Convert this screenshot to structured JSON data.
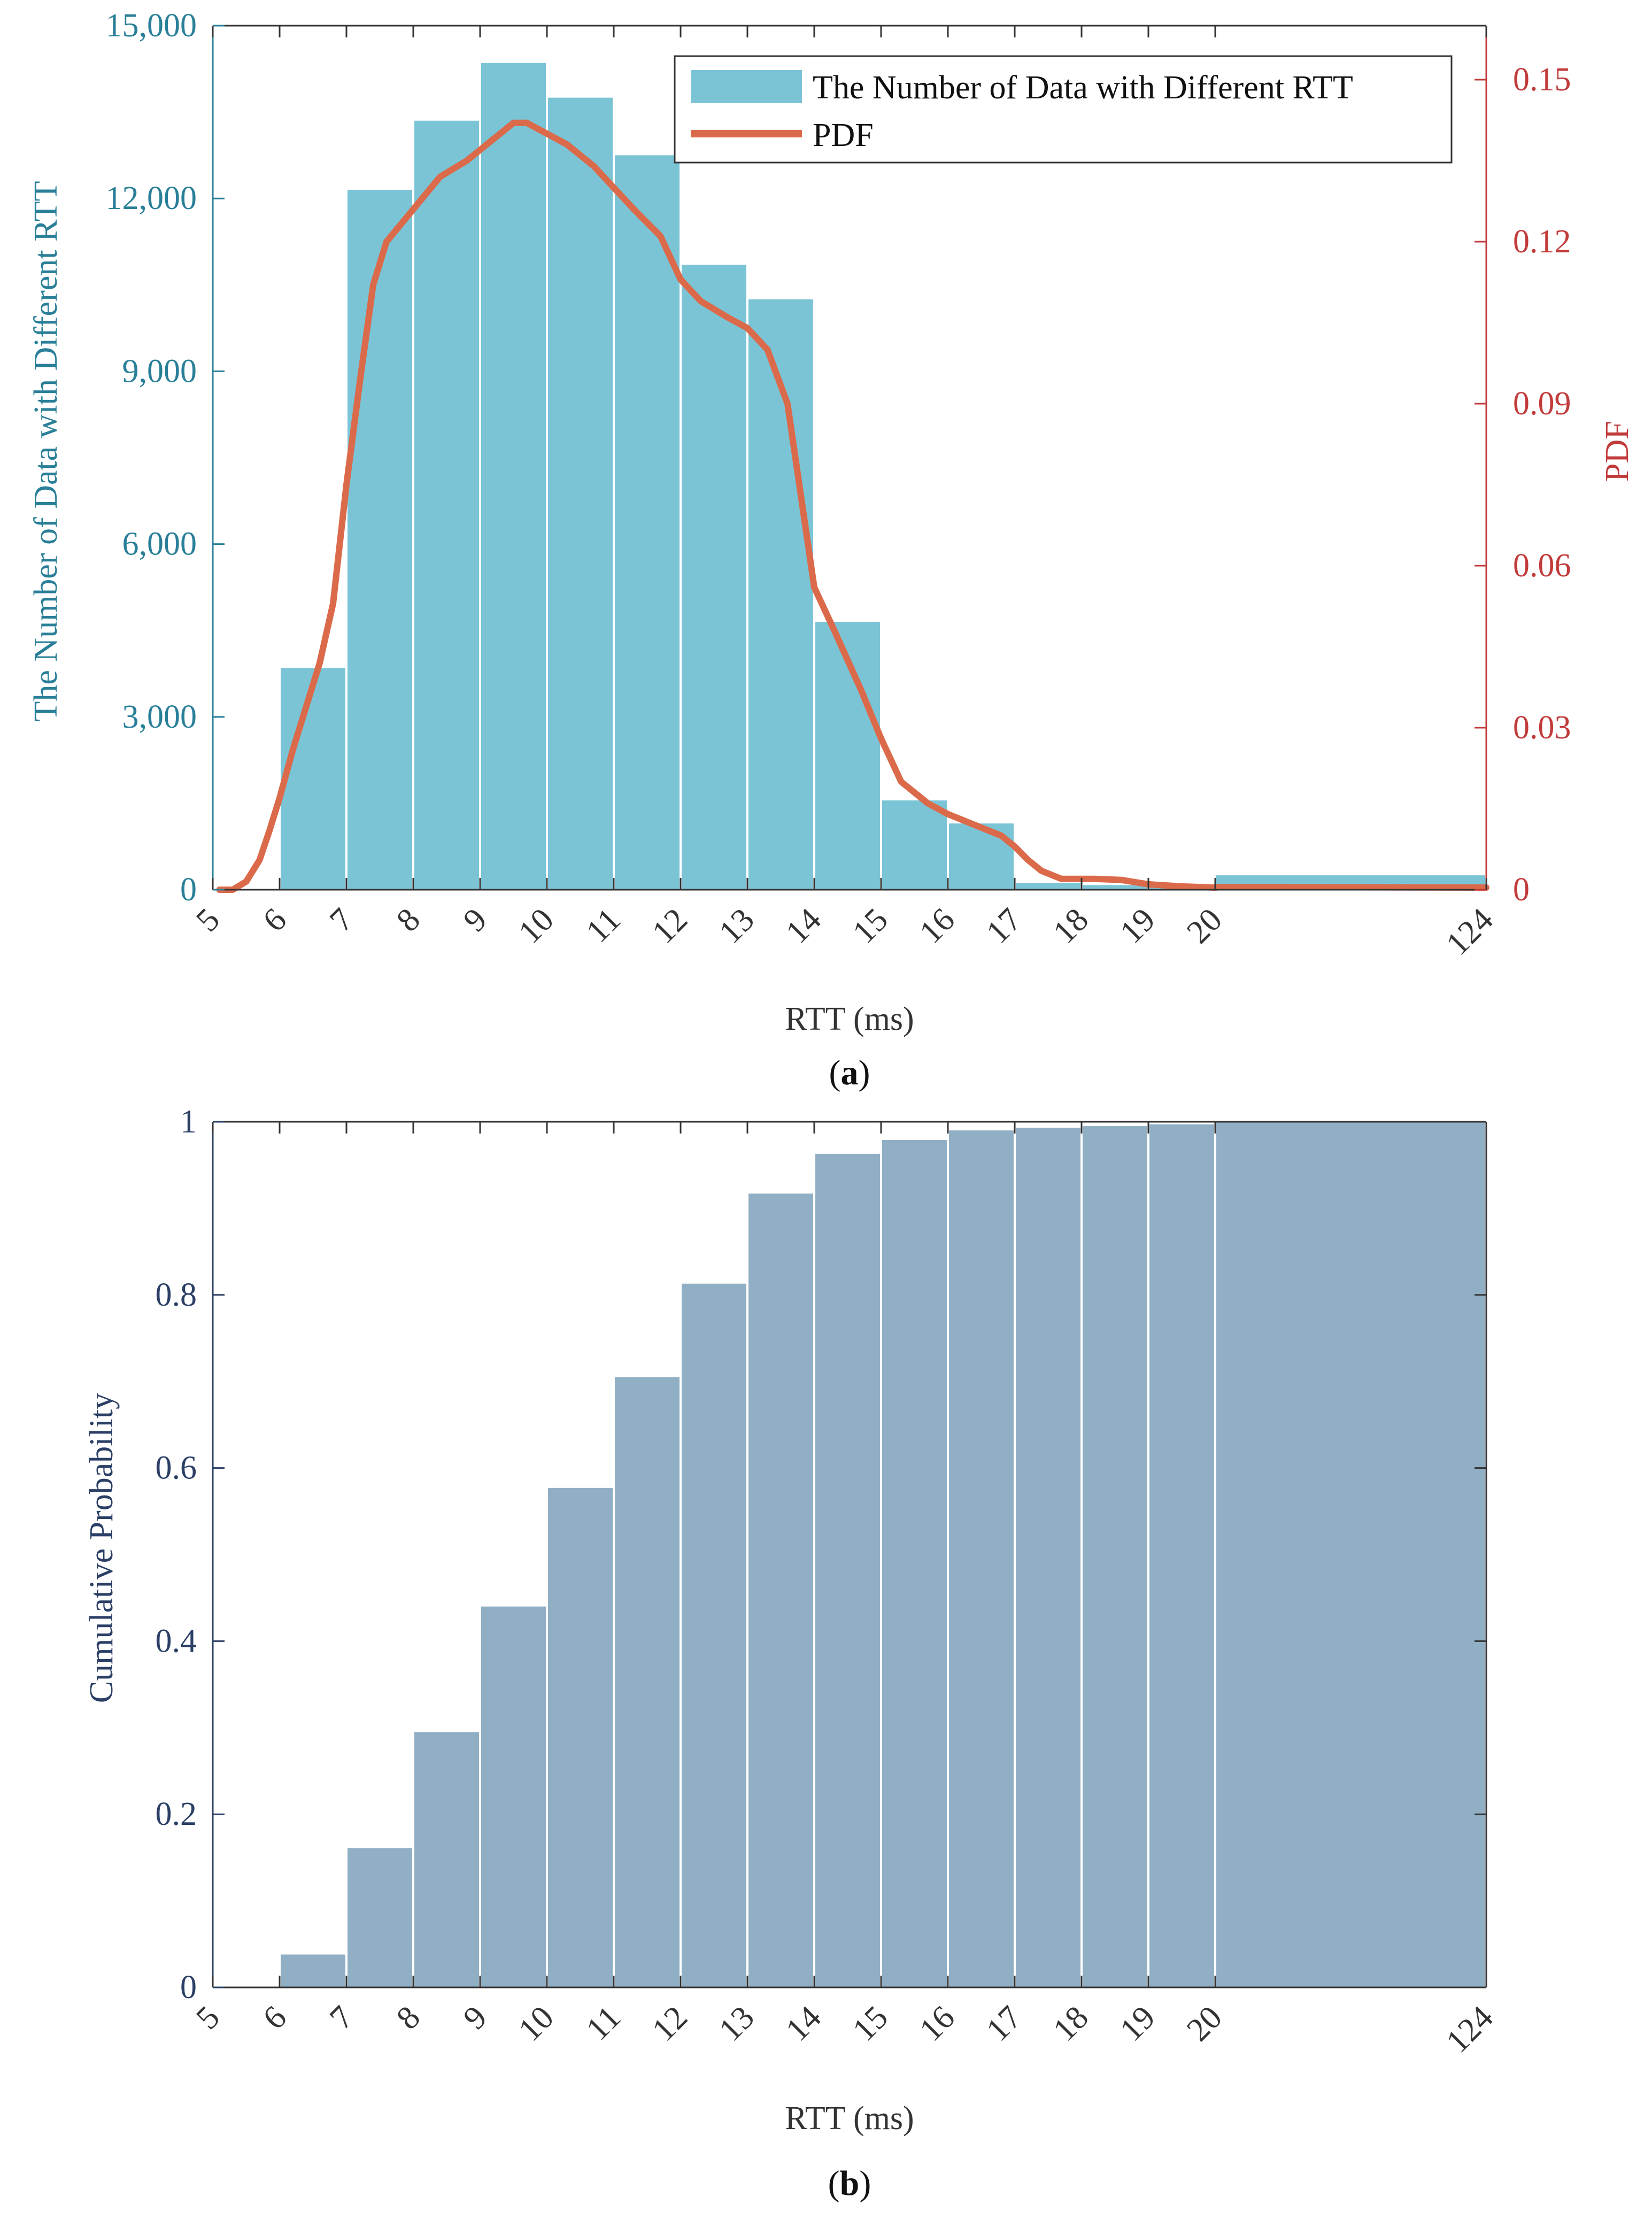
{
  "colors": {
    "bar_a": "#7bc4d6",
    "bar_b": "#91afc4",
    "pdf_line": "#db6a4b",
    "left_axis_a": "#2a7f98",
    "right_axis_a": "#c23b3b",
    "axis_b": "#2b3f66",
    "axis_black": "#333333"
  },
  "chart_data": [
    {
      "id": "a",
      "type": "bar",
      "panel_label": "a",
      "xlabel": "RTT (ms)",
      "ylabel": "The Number of Data with Different RTT",
      "y2label": "PDF",
      "x_ticks": [
        "5",
        "6",
        "7",
        "8",
        "9",
        "10",
        "11",
        "12",
        "13",
        "14",
        "15",
        "16",
        "17",
        "18",
        "19",
        "20",
        "124"
      ],
      "ylim": [
        0,
        15000
      ],
      "y_ticks": [
        0,
        3000,
        6000,
        9000,
        12000,
        15000
      ],
      "y_tick_labels": [
        "0",
        "3,000",
        "6,000",
        "9,000",
        "12,000",
        "15,000"
      ],
      "y2lim": [
        0,
        0.16
      ],
      "y2_ticks": [
        0,
        0.03,
        0.06,
        0.09,
        0.12,
        0.15
      ],
      "y2_tick_labels": [
        "0",
        "0.03",
        "0.06",
        "0.09",
        "0.12",
        "0.15"
      ],
      "legend": {
        "position": "top-right",
        "entries": [
          "The Number of Data with Different RTT",
          "PDF"
        ]
      },
      "bars": [
        {
          "from": 6,
          "to": 7,
          "value": 3850
        },
        {
          "from": 7,
          "to": 8,
          "value": 12150
        },
        {
          "from": 8,
          "to": 9,
          "value": 13350
        },
        {
          "from": 9,
          "to": 10,
          "value": 14350
        },
        {
          "from": 10,
          "to": 11,
          "value": 13750
        },
        {
          "from": 11,
          "to": 12,
          "value": 12750
        },
        {
          "from": 12,
          "to": 13,
          "value": 10850
        },
        {
          "from": 13,
          "to": 14,
          "value": 10250
        },
        {
          "from": 14,
          "to": 15,
          "value": 4650
        },
        {
          "from": 15,
          "to": 16,
          "value": 1550
        },
        {
          "from": 16,
          "to": 17,
          "value": 1150
        },
        {
          "from": 17,
          "to": 18,
          "value": 120
        },
        {
          "from": 18,
          "to": 19,
          "value": 80
        },
        {
          "from": 19,
          "to": 20,
          "value": 50
        },
        {
          "from": 20,
          "to": 124,
          "value": 250
        }
      ],
      "pdf_series": {
        "name": "PDF",
        "x": [
          5.1,
          5.3,
          5.5,
          5.7,
          5.85,
          6.0,
          6.2,
          6.4,
          6.6,
          6.8,
          7.0,
          7.2,
          7.4,
          7.6,
          8.0,
          8.4,
          8.8,
          9.2,
          9.5,
          9.7,
          10.0,
          10.3,
          10.7,
          11.0,
          11.3,
          11.7,
          12.0,
          12.3,
          12.7,
          13.0,
          13.3,
          13.6,
          13.8,
          14.0,
          14.3,
          14.7,
          15.0,
          15.3,
          15.7,
          16.0,
          16.4,
          16.8,
          17.0,
          17.2,
          17.4,
          17.7,
          18.2,
          18.6,
          19.0,
          19.5,
          20.0,
          22,
          124
        ],
        "y": [
          0.0,
          0.0,
          0.0015,
          0.0055,
          0.011,
          0.017,
          0.026,
          0.034,
          0.042,
          0.053,
          0.075,
          0.094,
          0.112,
          0.12,
          0.126,
          0.132,
          0.135,
          0.139,
          0.142,
          0.142,
          0.14,
          0.138,
          0.134,
          0.13,
          0.126,
          0.121,
          0.113,
          0.109,
          0.106,
          0.104,
          0.1,
          0.09,
          0.073,
          0.056,
          0.048,
          0.037,
          0.028,
          0.02,
          0.016,
          0.014,
          0.012,
          0.01,
          0.008,
          0.0055,
          0.0035,
          0.002,
          0.002,
          0.0018,
          0.001,
          0.0006,
          0.0004,
          0.0005,
          0.0004
        ]
      }
    },
    {
      "id": "b",
      "type": "bar",
      "panel_label": "b",
      "xlabel": "RTT (ms)",
      "ylabel": "Cumulative Probability",
      "x_ticks": [
        "5",
        "6",
        "7",
        "8",
        "9",
        "10",
        "11",
        "12",
        "13",
        "14",
        "15",
        "16",
        "17",
        "18",
        "19",
        "20",
        "124"
      ],
      "ylim": [
        0,
        1
      ],
      "y_ticks": [
        0,
        0.2,
        0.4,
        0.6,
        0.8,
        1
      ],
      "y_tick_labels": [
        "0",
        "0.2",
        "0.4",
        "0.6",
        "0.8",
        "1"
      ],
      "bars": [
        {
          "from": 6,
          "to": 7,
          "value": 0.038
        },
        {
          "from": 7,
          "to": 8,
          "value": 0.161
        },
        {
          "from": 8,
          "to": 9,
          "value": 0.295
        },
        {
          "from": 9,
          "to": 10,
          "value": 0.44
        },
        {
          "from": 10,
          "to": 11,
          "value": 0.577
        },
        {
          "from": 11,
          "to": 12,
          "value": 0.705
        },
        {
          "from": 12,
          "to": 13,
          "value": 0.813
        },
        {
          "from": 13,
          "to": 14,
          "value": 0.917
        },
        {
          "from": 14,
          "to": 15,
          "value": 0.963
        },
        {
          "from": 15,
          "to": 16,
          "value": 0.979
        },
        {
          "from": 16,
          "to": 17,
          "value": 0.99
        },
        {
          "from": 17,
          "to": 18,
          "value": 0.993
        },
        {
          "from": 18,
          "to": 19,
          "value": 0.995
        },
        {
          "from": 19,
          "to": 20,
          "value": 0.997
        },
        {
          "from": 20,
          "to": 124,
          "value": 1.0
        }
      ]
    }
  ]
}
